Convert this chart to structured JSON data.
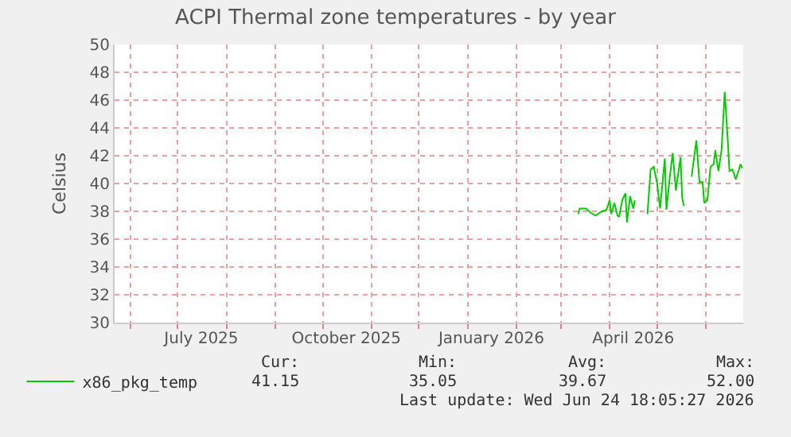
{
  "chart_data": {
    "type": "line",
    "title": "ACPI Thermal zone temperatures - by year",
    "ylabel": "Celsius",
    "x": [
      "2026-03-12",
      "2026-03-13",
      "2026-03-17",
      "2026-03-20",
      "2026-03-23",
      "2026-03-27",
      "2026-03-30",
      "2026-04-01",
      "2026-04-02",
      "2026-04-04",
      "2026-04-06",
      "2026-04-07",
      "2026-04-09",
      "2026-04-11",
      "2026-04-12",
      "2026-04-14",
      "2026-04-16",
      "2026-04-17",
      "2026-04-20",
      "2026-04-25",
      "2026-04-27",
      "2026-04-29",
      "2026-05-01",
      "2026-05-03",
      "2026-05-06",
      "2026-05-07",
      "2026-05-09",
      "2026-05-11",
      "2026-05-13",
      "2026-05-16",
      "2026-05-17",
      "2026-05-18",
      "2026-05-21",
      "2026-05-23",
      "2026-05-26",
      "2026-05-28",
      "2026-05-30",
      "2026-05-31",
      "2026-06-02",
      "2026-06-04",
      "2026-06-06",
      "2026-06-07",
      "2026-06-09",
      "2026-06-11",
      "2026-06-13",
      "2026-06-15",
      "2026-06-16",
      "2026-06-18",
      "2026-06-20",
      "2026-06-22",
      "2026-06-23",
      "2026-06-24"
    ],
    "series": [
      {
        "name": "x86_pkg_temp",
        "color": "#00cc00",
        "values": [
          37.8,
          38.2,
          38.2,
          37.9,
          37.7,
          38.0,
          38.1,
          38.8,
          37.8,
          38.6,
          37.7,
          37.6,
          38.8,
          39.3,
          37.2,
          39.1,
          38.2,
          38.8,
          null,
          37.8,
          41.0,
          41.2,
          40.1,
          38.2,
          41.8,
          38.1,
          40.3,
          42.2,
          39.5,
          41.9,
          39.0,
          38.4,
          null,
          40.5,
          43.1,
          40.1,
          40.1,
          38.6,
          38.8,
          41.2,
          41.4,
          42.4,
          40.9,
          42.4,
          46.6,
          43.0,
          40.9,
          41.0,
          40.3,
          41.0,
          41.4,
          41.1
        ]
      }
    ],
    "xlim": [
      "2025-05-22",
      "2026-06-24T18:00"
    ],
    "xticks": [
      {
        "value": "2025-06-01",
        "label": null
      },
      {
        "value": "2025-07-01",
        "label": null
      },
      {
        "value": "2025-07-16",
        "label": "July 2025"
      },
      {
        "value": "2025-08-01",
        "label": null
      },
      {
        "value": "2025-09-01",
        "label": null
      },
      {
        "value": "2025-10-01",
        "label": null
      },
      {
        "value": "2025-10-16",
        "label": "October 2025"
      },
      {
        "value": "2025-11-01",
        "label": null
      },
      {
        "value": "2025-12-01",
        "label": null
      },
      {
        "value": "2026-01-01",
        "label": null
      },
      {
        "value": "2026-01-16",
        "label": "January 2026"
      },
      {
        "value": "2026-02-01",
        "label": null
      },
      {
        "value": "2026-03-01",
        "label": null
      },
      {
        "value": "2026-04-01",
        "label": null
      },
      {
        "value": "2026-04-16",
        "label": "April 2026"
      },
      {
        "value": "2026-05-01",
        "label": null
      },
      {
        "value": "2026-06-01",
        "label": null
      }
    ],
    "ylim": [
      30,
      50
    ],
    "yticks": [
      30,
      32,
      34,
      36,
      38,
      40,
      42,
      44,
      46,
      48,
      50
    ],
    "grid": true,
    "legend": "bottom left",
    "marker": "none",
    "line_style": "solid",
    "annotations": [
      "Cur:",
      "Min:",
      "Avg:",
      "Max:",
      "41.15",
      "35.05",
      "39.67",
      "52.00",
      "Last update: Wed Jun 24 18:05:27 2026"
    ]
  }
}
